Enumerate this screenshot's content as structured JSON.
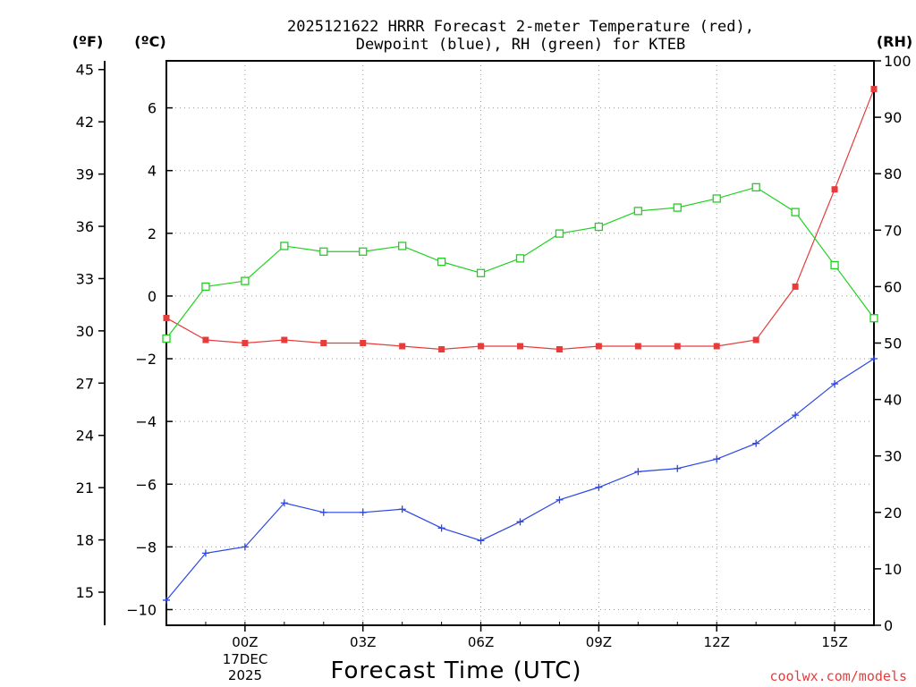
{
  "chart_data": {
    "type": "line",
    "title_lines": [
      "2025121622 HRRR Forecast 2-meter Temperature (red),",
      "Dewpoint (blue), RH (green) for KTEB"
    ],
    "xlabel": "Forecast Time (UTC)",
    "date_labels": [
      "17DEC",
      "2025"
    ],
    "watermark": "coolwx.com/models",
    "unit_labels": {
      "fahrenheit": "(ºF)",
      "celsius": "(ºC)",
      "rh": "(RH)"
    },
    "x": [
      -2,
      -1,
      0,
      1,
      2,
      3,
      4,
      5,
      6,
      7,
      8,
      9,
      10,
      11,
      12,
      13,
      14,
      15,
      16
    ],
    "xlim": [
      -2,
      16
    ],
    "x_ticks": [
      {
        "x": 0,
        "label": "00Z"
      },
      {
        "x": 3,
        "label": "03Z"
      },
      {
        "x": 6,
        "label": "06Z"
      },
      {
        "x": 9,
        "label": "09Z"
      },
      {
        "x": 12,
        "label": "12Z"
      },
      {
        "x": 15,
        "label": "15Z"
      }
    ],
    "celsius_axis": {
      "ylim": [
        -10.5,
        7.5
      ],
      "ticks": [
        6,
        4,
        2,
        0,
        -2,
        -4,
        -6,
        -8,
        -10
      ],
      "tick_labels": [
        "6",
        "4",
        "2",
        "0",
        "−2",
        "−4",
        "−6",
        "−8",
        "−10"
      ]
    },
    "fahrenheit_axis": {
      "ylim": [
        13.1,
        45.5
      ],
      "ticks": [
        45,
        42,
        39,
        36,
        33,
        30,
        27,
        24,
        21,
        18,
        15
      ],
      "tick_labels": [
        "45",
        "42",
        "39",
        "36",
        "33",
        "30",
        "27",
        "24",
        "21",
        "18",
        "15"
      ]
    },
    "rh_axis": {
      "ylim": [
        0,
        100
      ],
      "ticks": [
        100,
        90,
        80,
        70,
        60,
        50,
        40,
        30,
        20,
        10,
        0
      ],
      "tick_labels": [
        "100",
        "90",
        "80",
        "70",
        "60",
        "50",
        "40",
        "30",
        "20",
        "10",
        "0"
      ]
    },
    "series": [
      {
        "name": "2-meter Temperature",
        "axis": "celsius",
        "color": "#e63c3c",
        "marker": "filled-square",
        "values": [
          -0.7,
          -1.4,
          -1.5,
          -1.4,
          -1.5,
          -1.5,
          -1.6,
          -1.7,
          -1.6,
          -1.6,
          -1.7,
          -1.6,
          -1.6,
          -1.6,
          -1.6,
          -1.4,
          0.3,
          3.4,
          6.6
        ]
      },
      {
        "name": "Dewpoint",
        "axis": "celsius",
        "color": "#2a46e6",
        "marker": "plus",
        "values": [
          -9.7,
          -8.2,
          -8.0,
          -6.6,
          -6.9,
          -6.9,
          -6.8,
          -7.4,
          -7.8,
          -7.2,
          -6.5,
          -6.1,
          -5.6,
          -5.5,
          -5.2,
          -4.7,
          -3.8,
          -2.8,
          -2.0
        ]
      },
      {
        "name": "RH",
        "axis": "rh",
        "color": "#1ed21e",
        "marker": "open-square",
        "values": [
          50.8,
          60.0,
          61.0,
          67.2,
          66.2,
          66.2,
          67.2,
          64.4,
          62.4,
          65.0,
          69.4,
          70.6,
          73.4,
          74.0,
          75.6,
          77.6,
          73.2,
          63.8,
          54.4
        ]
      }
    ]
  }
}
